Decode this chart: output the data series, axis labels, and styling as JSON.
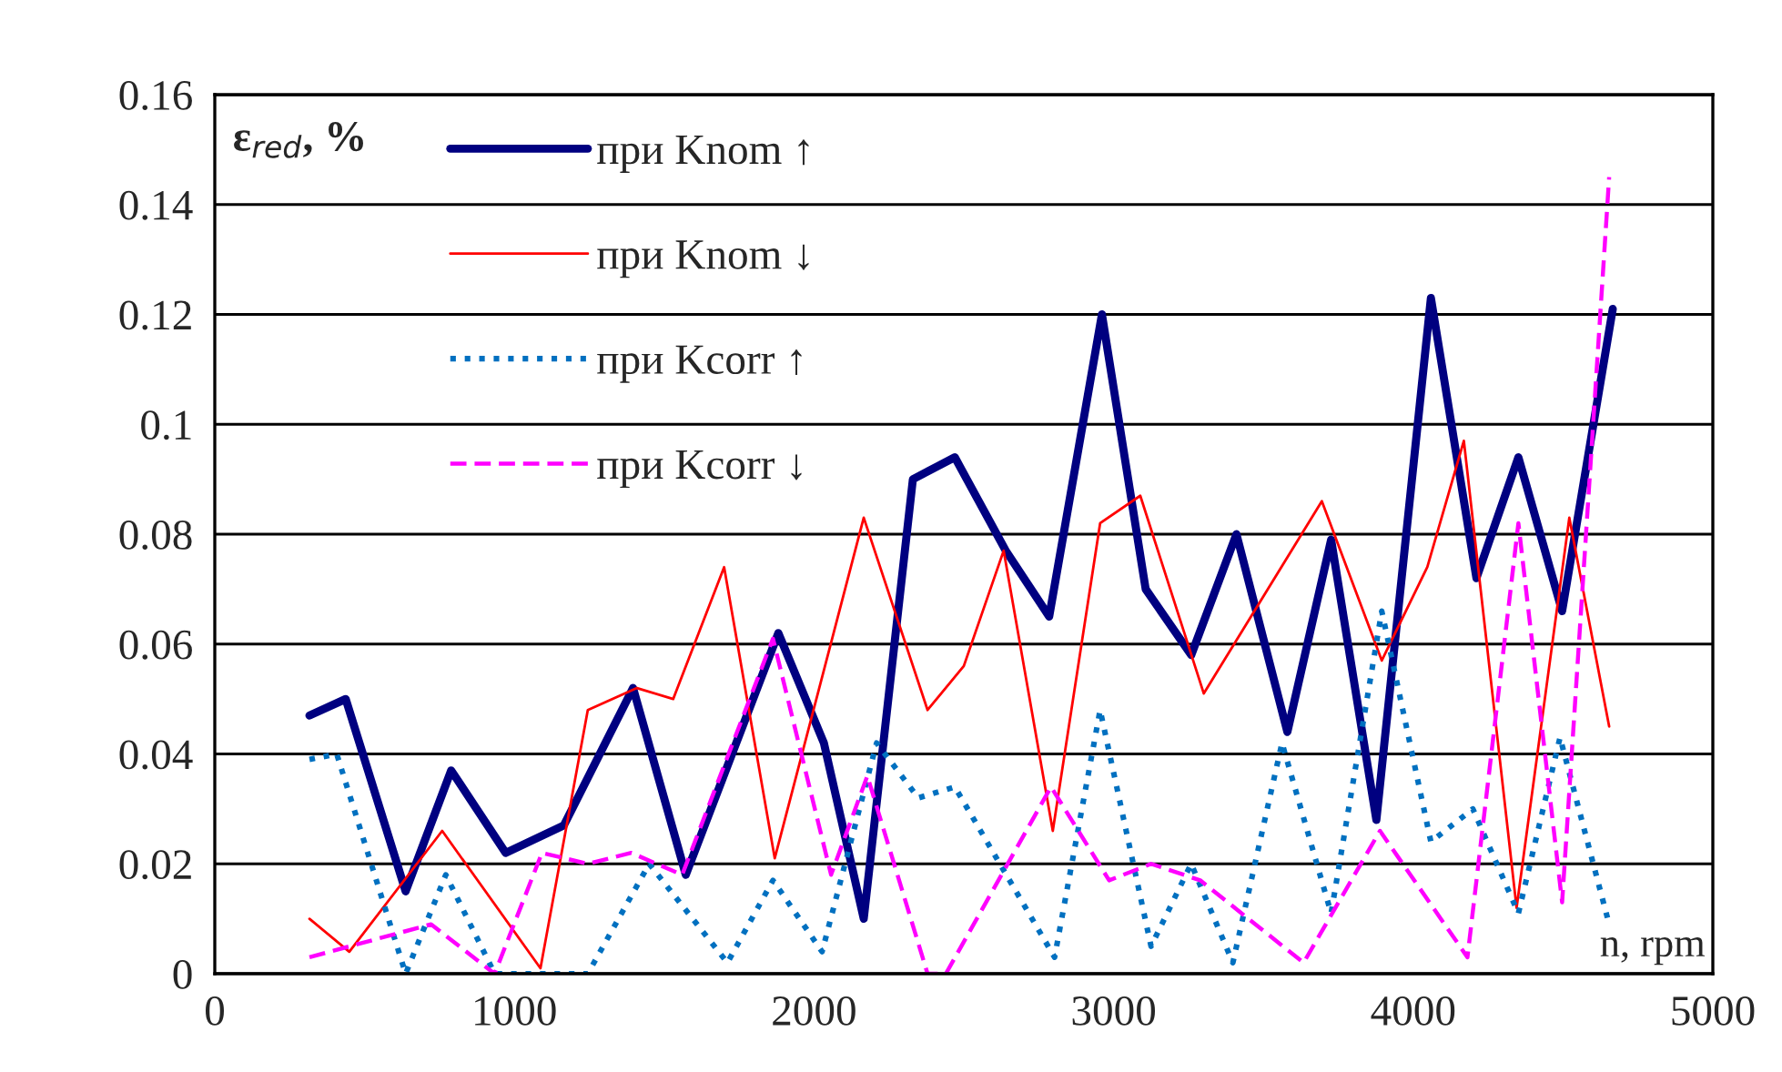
{
  "chart_data": {
    "type": "line",
    "xlabel": "n, rpm",
    "ylabel": "ε$_{red}$, %",
    "xlim": [
      0,
      5000
    ],
    "xticks": [
      0,
      1000,
      2000,
      3000,
      4000,
      5000
    ],
    "ylim": [
      0,
      0.16
    ],
    "yticks": [
      0,
      0.02,
      0.04,
      0.06,
      0.08,
      0.1,
      0.12,
      0.14,
      0.16
    ],
    "grid": "y",
    "legend": "top left",
    "series": [
      {
        "name": "при Knom ↑",
        "color": "#000080",
        "line_style": "solid",
        "x": [
          316,
          437,
          637,
          789,
          971,
          1165,
          1396,
          1572,
          1881,
          2033,
          2166,
          2330,
          2470,
          2640,
          2785,
          2961,
          3107,
          3259,
          3410,
          3580,
          3726,
          3877,
          4059,
          4211,
          4351,
          4497,
          4666
        ],
        "values": [
          0.047,
          0.05,
          0.015,
          0.037,
          0.022,
          0.027,
          0.052,
          0.018,
          0.062,
          0.042,
          0.01,
          0.09,
          0.094,
          0.077,
          0.065,
          0.12,
          0.07,
          0.058,
          0.08,
          0.044,
          0.079,
          0.028,
          0.123,
          0.072,
          0.094,
          0.066,
          0.121
        ]
      },
      {
        "name": "при Knom ↓",
        "color": "#ff0000",
        "line_style": "solid",
        "x": [
          316,
          449,
          759,
          1087,
          1245,
          1409,
          1530,
          1700,
          1869,
          2166,
          2379,
          2500,
          2633,
          2797,
          2955,
          3089,
          3301,
          3695,
          3895,
          4047,
          4169,
          4345,
          4521,
          4654
        ],
        "values": [
          0.01,
          0.004,
          0.026,
          0.001,
          0.048,
          0.052,
          0.05,
          0.074,
          0.021,
          0.083,
          0.048,
          0.056,
          0.077,
          0.026,
          0.082,
          0.087,
          0.051,
          0.086,
          0.057,
          0.074,
          0.097,
          0.012,
          0.083,
          0.045
        ]
      },
      {
        "name": "при Kcorr ↑",
        "color": "#0070c0",
        "line_style": "dotted",
        "x": [
          316,
          407,
          637,
          771,
          934,
          1245,
          1450,
          1711,
          1863,
          2027,
          2209,
          2348,
          2470,
          2803,
          2955,
          3125,
          3259,
          3398,
          3562,
          3726,
          3895,
          4059,
          4199,
          4351,
          4490,
          4654
        ],
        "values": [
          0.039,
          0.04,
          0.0,
          0.018,
          0.0,
          0.0,
          0.02,
          0.002,
          0.017,
          0.004,
          0.042,
          0.032,
          0.034,
          0.003,
          0.048,
          0.005,
          0.02,
          0.002,
          0.042,
          0.011,
          0.066,
          0.024,
          0.03,
          0.011,
          0.043,
          0.009
        ]
      },
      {
        "name": "при Kcorr ↓",
        "color": "#ff00ff",
        "line_style": "dashed",
        "x": [
          316,
          722,
          934,
          1092,
          1245,
          1390,
          1560,
          1863,
          2057,
          2178,
          2379,
          2440,
          2791,
          2985,
          3125,
          3289,
          3634,
          3889,
          4181,
          4351,
          4497,
          4654
        ],
        "values": [
          0.003,
          0.009,
          0.0,
          0.022,
          0.02,
          0.022,
          0.018,
          0.061,
          0.018,
          0.036,
          0.0,
          0.0,
          0.034,
          0.017,
          0.02,
          0.017,
          0.002,
          0.026,
          0.003,
          0.082,
          0.013,
          0.145
        ]
      }
    ]
  }
}
